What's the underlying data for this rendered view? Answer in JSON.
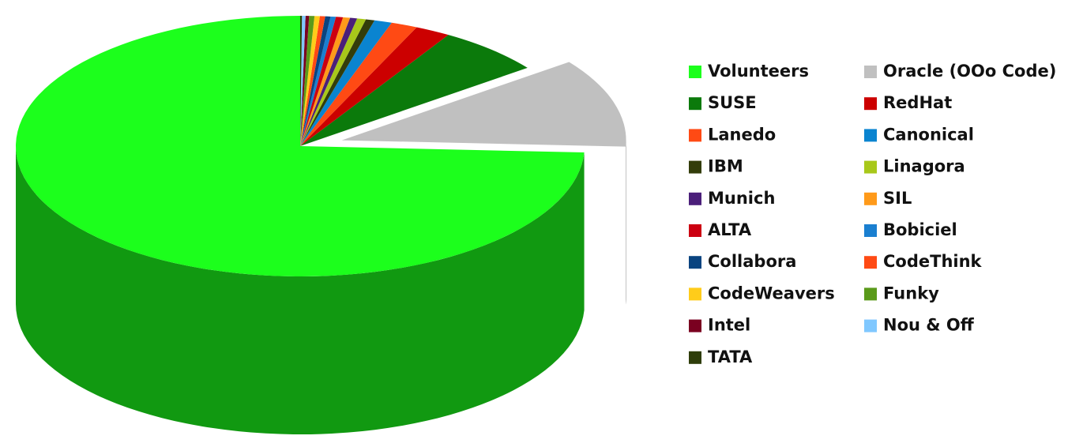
{
  "chart_data": {
    "type": "pie",
    "categories": [
      "Volunteers",
      "Oracle (OOo Code)",
      "SUSE",
      "RedHat",
      "Lanedo",
      "Canonical",
      "IBM",
      "Linagora",
      "Munich",
      "SIL",
      "ALTA",
      "Bobiciel",
      "Collabora",
      "CodeThink",
      "CodeWeavers",
      "Funky",
      "Intel",
      "Nou & Off",
      "TATA"
    ],
    "values": [
      74,
      11,
      6,
      2,
      1.5,
      1,
      0.5,
      0.5,
      0.4,
      0.4,
      0.4,
      0.3,
      0.3,
      0.3,
      0.3,
      0.3,
      0.2,
      0.2,
      0.1
    ],
    "colors": [
      "#1cff1c",
      "#c0c0c0",
      "#0b7a0b",
      "#cc0000",
      "#ff4a14",
      "#0a84d0",
      "#333d0a",
      "#a8c81a",
      "#4b1f7a",
      "#ff9a1a",
      "#cc0011",
      "#1a7fd0",
      "#0a4480",
      "#ff4a14",
      "#ffcc1a",
      "#5a9a1a",
      "#7a0020",
      "#80c8ff",
      "#2e3d0a"
    ],
    "legend": "right"
  }
}
